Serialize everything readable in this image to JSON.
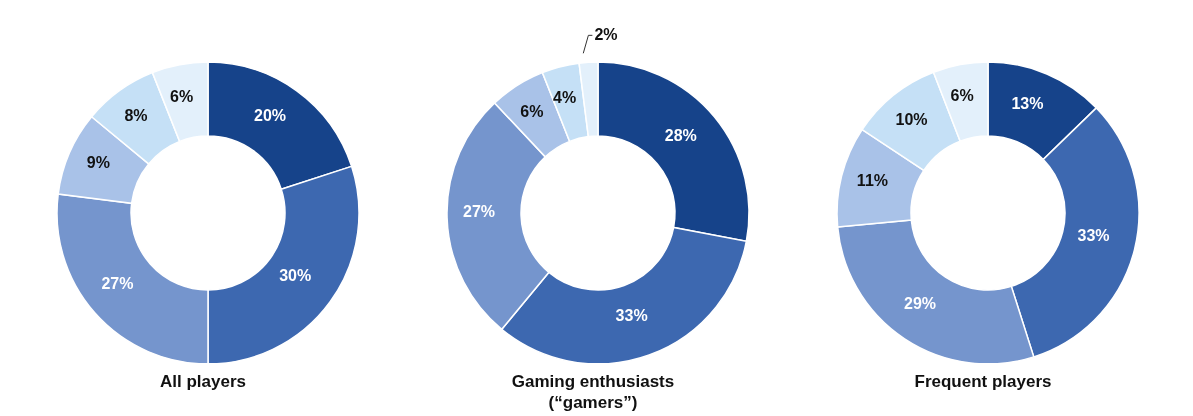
{
  "chart_data": [
    {
      "type": "donut",
      "title": "All players",
      "categories": [
        null,
        null,
        null,
        null,
        null,
        null
      ],
      "values": [
        20,
        30,
        27,
        9,
        8,
        6
      ],
      "value_labels": [
        "20%",
        "30%",
        "27%",
        "9%",
        "8%",
        "6%"
      ],
      "colors": [
        "#16438a",
        "#3d68b0",
        "#7595cd",
        "#a9c2e8",
        "#c5e0f6",
        "#e3f0fb"
      ]
    },
    {
      "type": "donut",
      "title": "Gaming enthusiasts (“gamers”)",
      "categories": [
        null,
        null,
        null,
        null,
        null,
        null
      ],
      "values": [
        28,
        33,
        27,
        6,
        4,
        2
      ],
      "value_labels": [
        "28%",
        "33%",
        "27%",
        "6%",
        "4%",
        "2%"
      ],
      "colors": [
        "#16438a",
        "#3d68b0",
        "#7595cd",
        "#a9c2e8",
        "#c5e0f6",
        "#e3f0fb"
      ]
    },
    {
      "type": "donut",
      "title": "Frequent players",
      "categories": [
        null,
        null,
        null,
        null,
        null,
        null
      ],
      "values": [
        13,
        33,
        29,
        11,
        10,
        6
      ],
      "value_labels": [
        "13%",
        "33%",
        "29%",
        "11%",
        "10%",
        "6%"
      ],
      "colors": [
        "#16438a",
        "#3d68b0",
        "#7595cd",
        "#a9c2e8",
        "#c5e0f6",
        "#e3f0fb"
      ]
    }
  ]
}
